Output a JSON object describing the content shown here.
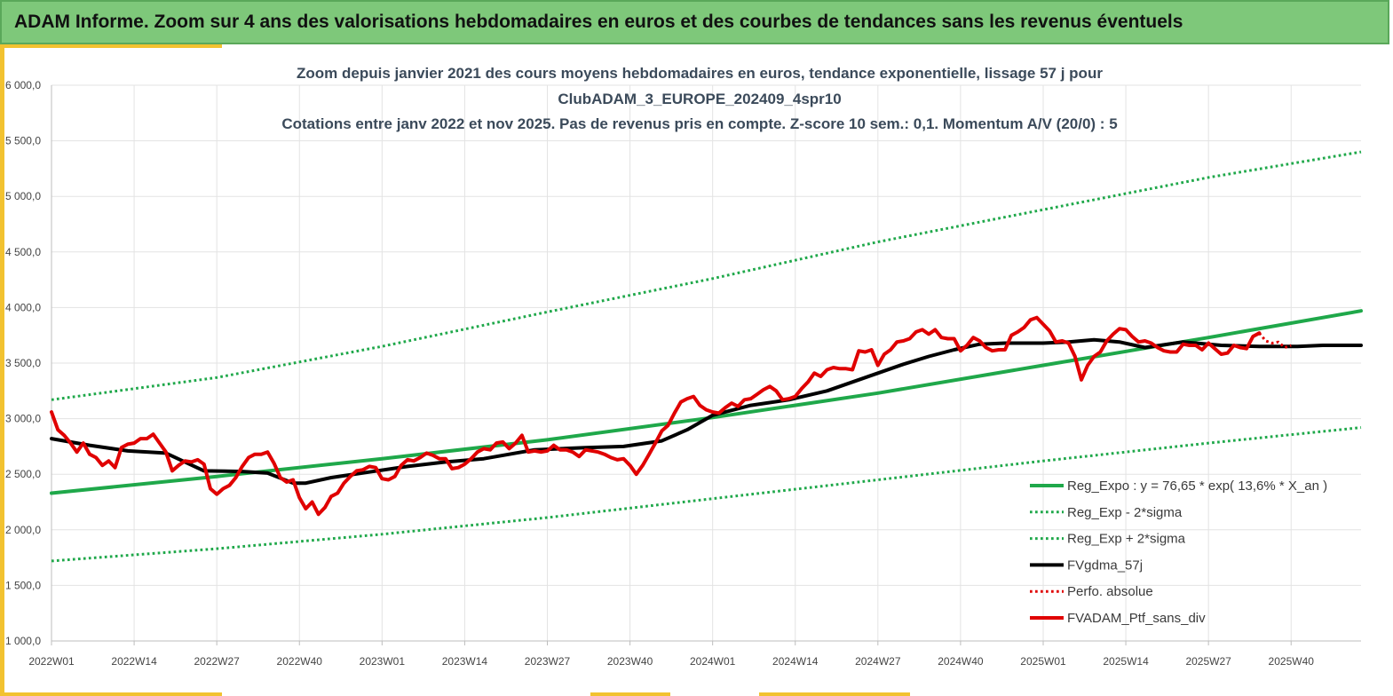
{
  "header": {
    "title": "ADAM Informe. Zoom sur 4 ans des valorisations hebdomadaires en euros et des courbes de tendances sans les revenus éventuels"
  },
  "chart_data": {
    "type": "line",
    "title_lines": [
      "Zoom depuis janvier 2021 des cours moyens hebdomadaires  en euros, tendance exponentielle, lissage 57 j pour",
      "ClubADAM_3_EUROPE_202409_4spr10",
      "Cotations  entre janv 2022 et nov 2025. Pas de revenus pris en compte. Z-score 10 sem.: 0,1. Momentum  A/V (20/0) : 5"
    ],
    "xlabel": "",
    "ylabel": "",
    "ylim": [
      1000,
      6000
    ],
    "yticks": [
      1000,
      1500,
      2000,
      2500,
      3000,
      3500,
      4000,
      4500,
      5000,
      5500,
      6000
    ],
    "ytick_labels": [
      "1 000,0",
      "1 500,0",
      "2 000,0",
      "2 500,0",
      "3 000,0",
      "3 500,0",
      "4 000,0",
      "4 500,0",
      "5 000,0",
      "5 500,0",
      "6 000,0"
    ],
    "xlim_weeks": [
      0,
      206
    ],
    "xticks": [
      0,
      13,
      26,
      39,
      52,
      65,
      78,
      91,
      104,
      117,
      130,
      143,
      156,
      169,
      182,
      195,
      208
    ],
    "xtick_labels": [
      "2022W01",
      "2022W14",
      "2022W27",
      "2022W40",
      "2023W01",
      "2023W14",
      "2023W27",
      "2023W40",
      "2024W01",
      "2024W14",
      "2024W27",
      "2024W40",
      "2025W01",
      "2025W14",
      "2025W27",
      "2025W40"
    ],
    "grid": true,
    "legend_position": "bottom-right",
    "legend": [
      {
        "label": "Reg_Expo : y = 76,65 * exp( 13,6% *  X_an )",
        "color": "#1fa84a",
        "style": "solid",
        "width": 4
      },
      {
        "label": "Reg_Exp - 2*sigma",
        "color": "#1fa84a",
        "style": "dotted",
        "width": 3
      },
      {
        "label": "Reg_Exp + 2*sigma",
        "color": "#1fa84a",
        "style": "dotted",
        "width": 3
      },
      {
        "label": "FVgdma_57j",
        "color": "#000000",
        "style": "solid",
        "width": 4
      },
      {
        "label": "Perfo. absolue",
        "color": "#e00000",
        "style": "dotted",
        "width": 3
      },
      {
        "label": "FVADAM_Ptf_sans_div",
        "color": "#e00000",
        "style": "solid",
        "width": 4
      }
    ],
    "series": [
      {
        "name": "Reg_Expo",
        "color": "#1fa84a",
        "style": "solid",
        "width": 4,
        "points": [
          [
            0,
            2330
          ],
          [
            26,
            2480
          ],
          [
            52,
            2640
          ],
          [
            78,
            2810
          ],
          [
            104,
            3010
          ],
          [
            130,
            3230
          ],
          [
            156,
            3480
          ],
          [
            182,
            3730
          ],
          [
            206,
            3970
          ]
        ]
      },
      {
        "name": "Reg_Exp - 2*sigma",
        "color": "#1fa84a",
        "style": "dotted",
        "width": 3,
        "points": [
          [
            0,
            1720
          ],
          [
            26,
            1830
          ],
          [
            52,
            1960
          ],
          [
            78,
            2110
          ],
          [
            104,
            2280
          ],
          [
            130,
            2450
          ],
          [
            156,
            2620
          ],
          [
            182,
            2780
          ],
          [
            206,
            2920
          ]
        ]
      },
      {
        "name": "Reg_Exp + 2*sigma",
        "color": "#1fa84a",
        "style": "dotted",
        "width": 3,
        "points": [
          [
            0,
            3170
          ],
          [
            26,
            3370
          ],
          [
            52,
            3650
          ],
          [
            78,
            3960
          ],
          [
            104,
            4260
          ],
          [
            130,
            4590
          ],
          [
            156,
            4880
          ],
          [
            182,
            5170
          ],
          [
            206,
            5400
          ]
        ]
      },
      {
        "name": "FVgdma_57j",
        "color": "#000000",
        "style": "solid",
        "width": 4,
        "points": [
          [
            0,
            2820
          ],
          [
            6,
            2760
          ],
          [
            12,
            2710
          ],
          [
            18,
            2690
          ],
          [
            24,
            2530
          ],
          [
            30,
            2525
          ],
          [
            34,
            2510
          ],
          [
            38,
            2420
          ],
          [
            40,
            2420
          ],
          [
            44,
            2470
          ],
          [
            50,
            2520
          ],
          [
            56,
            2570
          ],
          [
            62,
            2610
          ],
          [
            68,
            2640
          ],
          [
            76,
            2720
          ],
          [
            84,
            2740
          ],
          [
            90,
            2750
          ],
          [
            96,
            2800
          ],
          [
            100,
            2900
          ],
          [
            104,
            3030
          ],
          [
            110,
            3120
          ],
          [
            116,
            3170
          ],
          [
            122,
            3250
          ],
          [
            128,
            3370
          ],
          [
            134,
            3490
          ],
          [
            138,
            3560
          ],
          [
            142,
            3620
          ],
          [
            146,
            3670
          ],
          [
            150,
            3680
          ],
          [
            156,
            3680
          ],
          [
            160,
            3690
          ],
          [
            164,
            3710
          ],
          [
            168,
            3690
          ],
          [
            172,
            3640
          ],
          [
            178,
            3690
          ],
          [
            184,
            3660
          ],
          [
            190,
            3650
          ],
          [
            196,
            3650
          ],
          [
            200,
            3660
          ],
          [
            206,
            3660
          ]
        ]
      },
      {
        "name": "FVADAM_Ptf_sans_div",
        "color": "#e00000",
        "style": "solid",
        "width": 4,
        "points": [
          [
            0,
            3060
          ],
          [
            1,
            2900
          ],
          [
            2,
            2850
          ],
          [
            3,
            2780
          ],
          [
            4,
            2700
          ],
          [
            5,
            2780
          ],
          [
            6,
            2680
          ],
          [
            7,
            2650
          ],
          [
            8,
            2580
          ],
          [
            9,
            2620
          ],
          [
            10,
            2560
          ],
          [
            11,
            2740
          ],
          [
            12,
            2770
          ],
          [
            13,
            2780
          ],
          [
            14,
            2820
          ],
          [
            15,
            2820
          ],
          [
            16,
            2860
          ],
          [
            17,
            2780
          ],
          [
            18,
            2700
          ],
          [
            19,
            2530
          ],
          [
            20,
            2580
          ],
          [
            21,
            2620
          ],
          [
            22,
            2610
          ],
          [
            23,
            2630
          ],
          [
            24,
            2590
          ],
          [
            25,
            2370
          ],
          [
            26,
            2320
          ],
          [
            27,
            2370
          ],
          [
            28,
            2400
          ],
          [
            29,
            2470
          ],
          [
            30,
            2570
          ],
          [
            31,
            2650
          ],
          [
            32,
            2680
          ],
          [
            33,
            2680
          ],
          [
            34,
            2700
          ],
          [
            35,
            2600
          ],
          [
            36,
            2470
          ],
          [
            37,
            2430
          ],
          [
            38,
            2450
          ],
          [
            39,
            2290
          ],
          [
            40,
            2190
          ],
          [
            41,
            2250
          ],
          [
            42,
            2140
          ],
          [
            43,
            2200
          ],
          [
            44,
            2300
          ],
          [
            45,
            2330
          ],
          [
            46,
            2420
          ],
          [
            47,
            2480
          ],
          [
            48,
            2530
          ],
          [
            49,
            2540
          ],
          [
            50,
            2570
          ],
          [
            51,
            2560
          ],
          [
            52,
            2460
          ],
          [
            53,
            2450
          ],
          [
            54,
            2480
          ],
          [
            55,
            2580
          ],
          [
            56,
            2630
          ],
          [
            57,
            2620
          ],
          [
            58,
            2650
          ],
          [
            59,
            2690
          ],
          [
            60,
            2670
          ],
          [
            61,
            2640
          ],
          [
            62,
            2640
          ],
          [
            63,
            2550
          ],
          [
            64,
            2560
          ],
          [
            65,
            2590
          ],
          [
            66,
            2640
          ],
          [
            67,
            2700
          ],
          [
            68,
            2730
          ],
          [
            69,
            2720
          ],
          [
            70,
            2780
          ],
          [
            71,
            2790
          ],
          [
            72,
            2730
          ],
          [
            73,
            2780
          ],
          [
            74,
            2850
          ],
          [
            75,
            2700
          ],
          [
            76,
            2710
          ],
          [
            77,
            2700
          ],
          [
            78,
            2710
          ],
          [
            79,
            2760
          ],
          [
            80,
            2720
          ],
          [
            81,
            2720
          ],
          [
            82,
            2700
          ],
          [
            83,
            2660
          ],
          [
            84,
            2720
          ],
          [
            85,
            2710
          ],
          [
            86,
            2700
          ],
          [
            87,
            2680
          ],
          [
            88,
            2650
          ],
          [
            89,
            2630
          ],
          [
            90,
            2640
          ],
          [
            91,
            2580
          ],
          [
            92,
            2500
          ],
          [
            93,
            2580
          ],
          [
            94,
            2680
          ],
          [
            95,
            2780
          ],
          [
            96,
            2890
          ],
          [
            97,
            2940
          ],
          [
            98,
            3050
          ],
          [
            99,
            3150
          ],
          [
            100,
            3180
          ],
          [
            101,
            3200
          ],
          [
            102,
            3120
          ],
          [
            103,
            3080
          ],
          [
            104,
            3060
          ],
          [
            105,
            3050
          ],
          [
            106,
            3100
          ],
          [
            107,
            3140
          ],
          [
            108,
            3110
          ],
          [
            109,
            3170
          ],
          [
            110,
            3180
          ],
          [
            111,
            3220
          ],
          [
            112,
            3260
          ],
          [
            113,
            3290
          ],
          [
            114,
            3250
          ],
          [
            115,
            3170
          ],
          [
            116,
            3180
          ],
          [
            117,
            3200
          ],
          [
            118,
            3270
          ],
          [
            119,
            3330
          ],
          [
            120,
            3410
          ],
          [
            121,
            3380
          ],
          [
            122,
            3440
          ],
          [
            123,
            3460
          ],
          [
            124,
            3450
          ],
          [
            125,
            3450
          ],
          [
            126,
            3440
          ],
          [
            127,
            3610
          ],
          [
            128,
            3600
          ],
          [
            129,
            3620
          ],
          [
            130,
            3480
          ],
          [
            131,
            3580
          ],
          [
            132,
            3620
          ],
          [
            133,
            3690
          ],
          [
            134,
            3700
          ],
          [
            135,
            3720
          ],
          [
            136,
            3780
          ],
          [
            137,
            3800
          ],
          [
            138,
            3760
          ],
          [
            139,
            3800
          ],
          [
            140,
            3730
          ],
          [
            141,
            3720
          ],
          [
            142,
            3720
          ],
          [
            143,
            3610
          ],
          [
            144,
            3660
          ],
          [
            145,
            3730
          ],
          [
            146,
            3700
          ],
          [
            147,
            3640
          ],
          [
            148,
            3610
          ],
          [
            149,
            3620
          ],
          [
            150,
            3620
          ],
          [
            151,
            3750
          ],
          [
            152,
            3780
          ],
          [
            153,
            3820
          ],
          [
            154,
            3890
          ],
          [
            155,
            3910
          ],
          [
            156,
            3850
          ],
          [
            157,
            3790
          ],
          [
            158,
            3690
          ],
          [
            159,
            3700
          ],
          [
            160,
            3680
          ],
          [
            161,
            3560
          ],
          [
            162,
            3350
          ],
          [
            163,
            3480
          ],
          [
            164,
            3560
          ],
          [
            165,
            3600
          ],
          [
            166,
            3700
          ],
          [
            167,
            3760
          ],
          [
            168,
            3810
          ],
          [
            169,
            3800
          ],
          [
            170,
            3740
          ],
          [
            171,
            3690
          ],
          [
            172,
            3700
          ],
          [
            173,
            3680
          ],
          [
            174,
            3640
          ],
          [
            175,
            3610
          ],
          [
            176,
            3600
          ],
          [
            177,
            3600
          ],
          [
            178,
            3670
          ],
          [
            179,
            3660
          ],
          [
            180,
            3660
          ],
          [
            181,
            3620
          ],
          [
            182,
            3680
          ],
          [
            183,
            3630
          ],
          [
            184,
            3580
          ],
          [
            185,
            3590
          ],
          [
            186,
            3660
          ],
          [
            187,
            3640
          ],
          [
            188,
            3630
          ],
          [
            189,
            3740
          ],
          [
            190,
            3770
          ]
        ]
      },
      {
        "name": "Perfo. absolue",
        "color": "#e00000",
        "style": "dotted",
        "width": 3,
        "points": [
          [
            190,
            3770
          ],
          [
            191,
            3700
          ],
          [
            192,
            3680
          ],
          [
            193,
            3690
          ],
          [
            194,
            3640
          ],
          [
            195,
            3660
          ]
        ]
      }
    ]
  }
}
